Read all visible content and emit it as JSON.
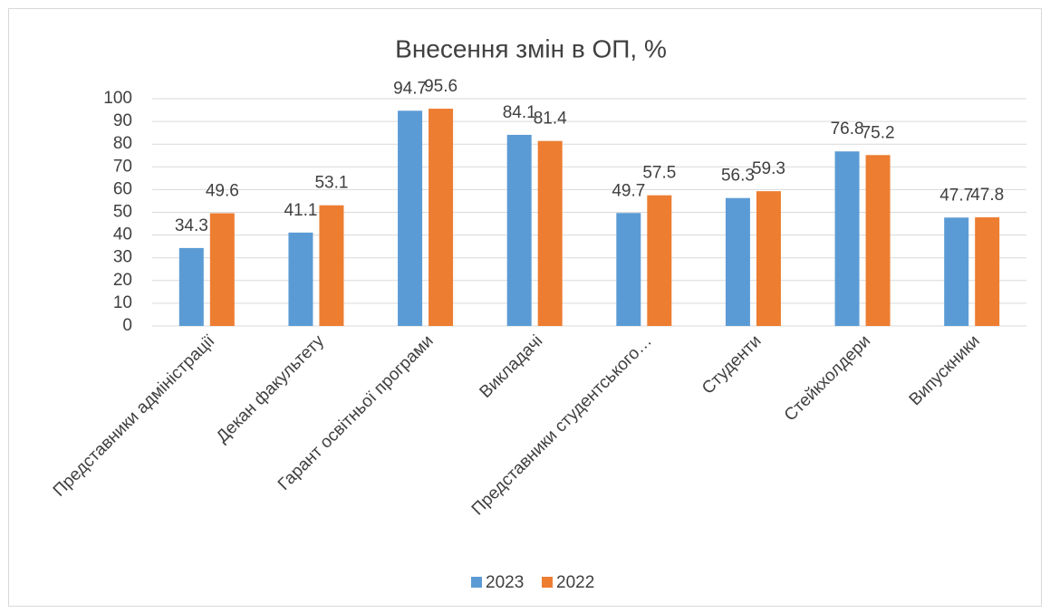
{
  "chart_data": {
    "type": "bar",
    "title": "Внесення змін в ОП, %",
    "categories": [
      "Представники адміністрації",
      "Декан факультету",
      "Гарант освітньої програми",
      "Викладачі",
      "Представники студентського…",
      "Студенти",
      "Стейкхолдери",
      "Випускники"
    ],
    "series": [
      {
        "name": "2023",
        "color": "#5b9bd5",
        "values": [
          34.3,
          41.1,
          94.7,
          84.1,
          49.7,
          56.3,
          76.8,
          47.7
        ]
      },
      {
        "name": "2022",
        "color": "#ed7d31",
        "values": [
          49.6,
          53.1,
          95.6,
          81.4,
          57.5,
          59.3,
          75.2,
          47.8
        ]
      }
    ],
    "ylim": [
      0,
      100
    ],
    "yticks": [
      0,
      10,
      20,
      30,
      40,
      50,
      60,
      70,
      80,
      90,
      100
    ],
    "grid": true,
    "legend": "bottom"
  }
}
